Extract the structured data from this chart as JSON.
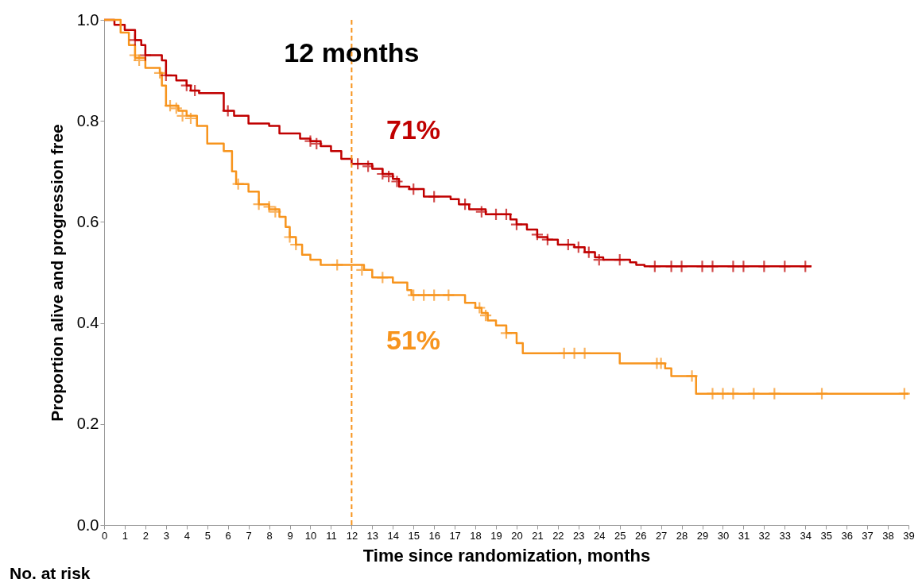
{
  "chart_data": {
    "type": "step",
    "xlabel": "Time since randomization, months",
    "ylabel": "Proportion alive and progression free",
    "xlim": [
      0,
      39
    ],
    "xticks": [
      0,
      1,
      2,
      3,
      4,
      5,
      6,
      7,
      8,
      9,
      10,
      11,
      12,
      13,
      14,
      15,
      16,
      17,
      18,
      19,
      20,
      21,
      22,
      23,
      24,
      25,
      26,
      27,
      28,
      29,
      30,
      31,
      32,
      33,
      34,
      35,
      36,
      37,
      38,
      39
    ],
    "ylim": [
      0,
      1
    ],
    "yticks": [
      {
        "value": 0,
        "label": "0.0"
      },
      {
        "value": 0.2,
        "label": "0.2"
      },
      {
        "value": 0.4,
        "label": "0.4"
      },
      {
        "value": 0.6,
        "label": "0.6"
      },
      {
        "value": 0.8,
        "label": "0.8"
      },
      {
        "value": 1,
        "label": "1.0"
      }
    ],
    "grid": false,
    "legend": false,
    "line_style": "solid",
    "series": [
      {
        "color": "#c00000",
        "x": [
          0,
          0.5,
          1,
          1.5,
          1.8,
          2,
          2.8,
          3,
          3.5,
          4,
          4.2,
          4.6,
          5.8,
          6.3,
          7,
          8,
          8.5,
          9.5,
          10,
          10.5,
          11,
          11.5,
          12,
          13,
          13.5,
          14,
          14.3,
          14.8,
          15.5,
          16.8,
          17.2,
          17.7,
          18.5,
          19.7,
          20,
          20.5,
          21,
          21.5,
          22,
          22.8,
          23.3,
          23.8,
          24.2,
          25.5,
          25.8,
          26.2,
          34.3
        ],
        "values": [
          1,
          0.99,
          0.98,
          0.96,
          0.95,
          0.93,
          0.92,
          0.89,
          0.88,
          0.87,
          0.86,
          0.855,
          0.82,
          0.81,
          0.795,
          0.79,
          0.775,
          0.765,
          0.76,
          0.75,
          0.74,
          0.725,
          0.715,
          0.705,
          0.695,
          0.685,
          0.67,
          0.665,
          0.65,
          0.645,
          0.635,
          0.625,
          0.615,
          0.605,
          0.595,
          0.585,
          0.57,
          0.565,
          0.555,
          0.55,
          0.54,
          0.53,
          0.525,
          0.52,
          0.515,
          0.512,
          0.512
        ]
      },
      {
        "color": "#f7941d",
        "x": [
          0,
          0.8,
          1.2,
          1.5,
          2,
          2.7,
          2.8,
          3,
          3.6,
          4,
          4.5,
          5,
          5.8,
          6.2,
          6.4,
          7,
          7.5,
          8,
          8.5,
          8.8,
          9,
          9.3,
          9.6,
          10,
          10.5,
          12.6,
          13,
          14,
          14.7,
          14.9,
          17.5,
          18,
          18.3,
          18.6,
          19,
          19.5,
          20,
          20.3,
          25,
          27.2,
          27.5,
          28.7,
          39
        ],
        "values": [
          1,
          0.975,
          0.95,
          0.925,
          0.905,
          0.895,
          0.87,
          0.83,
          0.82,
          0.81,
          0.79,
          0.755,
          0.74,
          0.7,
          0.675,
          0.66,
          0.635,
          0.625,
          0.61,
          0.59,
          0.57,
          0.555,
          0.535,
          0.525,
          0.515,
          0.505,
          0.49,
          0.48,
          0.465,
          0.455,
          0.44,
          0.43,
          0.42,
          0.405,
          0.395,
          0.38,
          0.36,
          0.34,
          0.32,
          0.31,
          0.295,
          0.26,
          0.26
        ]
      },
      {
        "type": "scatter",
        "marker": "cross",
        "color": "#c00000",
        "x": [
          1.5,
          2,
          3,
          4,
          4.4,
          6,
          10,
          10.3,
          12.3,
          12.8,
          13.5,
          13.8,
          14.2,
          15,
          16,
          17.5,
          18.3,
          19,
          19.5,
          20,
          21,
          21.5,
          22.5,
          23,
          23.5,
          24,
          25,
          26.7,
          27.5,
          28,
          29,
          29.5,
          30.5,
          31,
          32,
          33,
          34
        ],
        "values": [
          0.96,
          0.93,
          0.89,
          0.87,
          0.86,
          0.82,
          0.76,
          0.755,
          0.715,
          0.71,
          0.695,
          0.69,
          0.68,
          0.665,
          0.65,
          0.635,
          0.62,
          0.615,
          0.615,
          0.595,
          0.575,
          0.565,
          0.555,
          0.55,
          0.54,
          0.525,
          0.525,
          0.512,
          0.512,
          0.512,
          0.512,
          0.512,
          0.512,
          0.512,
          0.512,
          0.512,
          0.512
        ]
      },
      {
        "type": "scatter",
        "marker": "cross",
        "color": "#f7941d",
        "x": [
          1.5,
          1.7,
          2.7,
          3.2,
          3.5,
          3.8,
          4.2,
          6.5,
          7.5,
          8,
          8.3,
          9,
          9.3,
          11.3,
          12.5,
          13.5,
          15,
          15.5,
          16,
          16.7,
          18.2,
          18.5,
          19.5,
          22.3,
          22.8,
          23.3,
          26.8,
          27,
          28.5,
          29.5,
          30,
          30.5,
          31.5,
          32.5,
          34.8,
          38.8
        ],
        "values": [
          0.93,
          0.92,
          0.895,
          0.83,
          0.825,
          0.81,
          0.805,
          0.675,
          0.635,
          0.63,
          0.62,
          0.57,
          0.555,
          0.515,
          0.505,
          0.49,
          0.455,
          0.455,
          0.455,
          0.455,
          0.43,
          0.415,
          0.38,
          0.34,
          0.34,
          0.34,
          0.32,
          0.32,
          0.295,
          0.26,
          0.26,
          0.26,
          0.26,
          0.26,
          0.26,
          0.26
        ]
      }
    ],
    "ref_lines": [
      {
        "axis": "x",
        "value": 12,
        "label": "12 months",
        "color": "#f7941d",
        "line_style": "dashed"
      }
    ],
    "annotations": [
      "71%",
      "51%",
      "No. at risk"
    ]
  }
}
